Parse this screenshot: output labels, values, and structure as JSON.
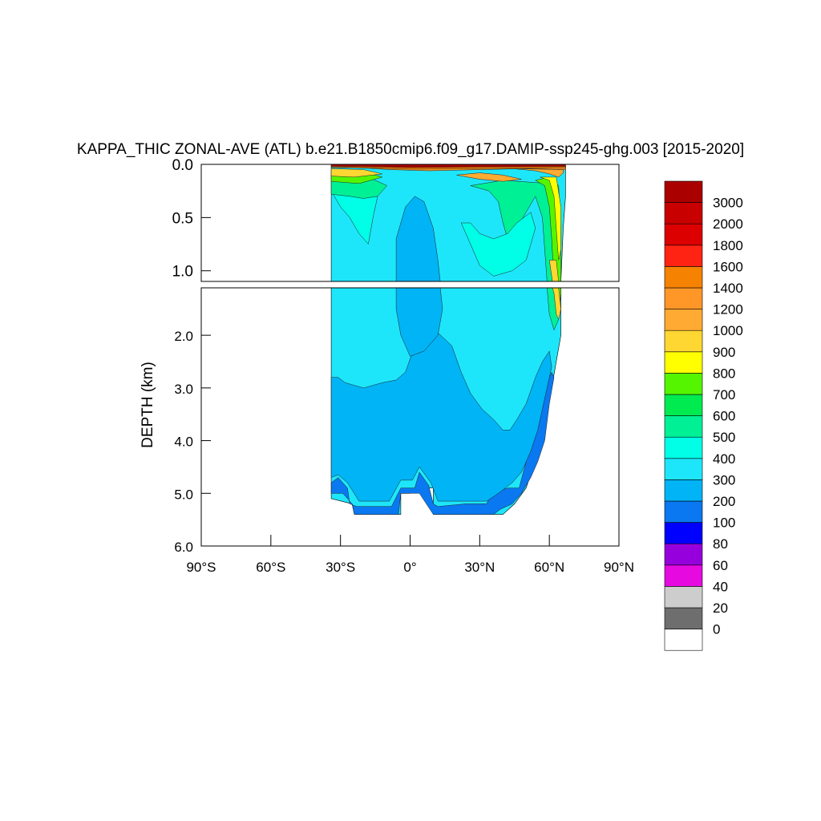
{
  "chart_data": {
    "type": "heatmap",
    "title": "KAPPA_THIC ZONAL-AVE (ATL) b.e21.B1850cmip6.f09_g17.DAMIP-ssp245-ghg.003 [2015-2020]",
    "ylabel": "DEPTH (km)",
    "xlabel": "",
    "x_ticks": [
      {
        "value": -90,
        "label": "90°S"
      },
      {
        "value": -60,
        "label": "60°S"
      },
      {
        "value": -30,
        "label": "30°S"
      },
      {
        "value": 0,
        "label": "0°"
      },
      {
        "value": 30,
        "label": "30°N"
      },
      {
        "value": 60,
        "label": "60°N"
      },
      {
        "value": 90,
        "label": "90°N"
      }
    ],
    "xlim": [
      -90,
      90
    ],
    "upper_panel": {
      "ylim": [
        0.0,
        1.1
      ],
      "y_ticks": [
        "0.0",
        "0.5",
        "1.0"
      ],
      "y_values": [
        0.0,
        0.5,
        1.0
      ]
    },
    "lower_panel": {
      "ylim": [
        1.1,
        6.0
      ],
      "y_ticks": [
        "2.0",
        "3.0",
        "4.0",
        "5.0",
        "6.0"
      ],
      "y_values": [
        2.0,
        3.0,
        4.0,
        5.0,
        6.0
      ]
    },
    "levels": [
      "0",
      "20",
      "40",
      "60",
      "80",
      "100",
      "200",
      "300",
      "400",
      "500",
      "600",
      "700",
      "800",
      "900",
      "1000",
      "1200",
      "1400",
      "1600",
      "1800",
      "2000",
      "3000"
    ],
    "colors": [
      "#ffffff",
      "#6e6e6e",
      "#cdcdcd",
      "#e60ae0",
      "#9600dc",
      "#0000ff",
      "#0a78f0",
      "#00b4f5",
      "#1ee6fa",
      "#00ffe6",
      "#00f096",
      "#00eb50",
      "#55f500",
      "#ffff00",
      "#ffd732",
      "#ffaa32",
      "#ff9628",
      "#f58200",
      "#ff2314",
      "#dc0000",
      "#c80000",
      "#aa0000"
    ],
    "regions": [
      {
        "name": "bottom-layer-200-300",
        "level_index": 6,
        "points": [
          [
            -34,
            4.8
          ],
          [
            -31,
            4.7
          ],
          [
            -27,
            4.9
          ],
          [
            -26,
            5.2
          ],
          [
            -23,
            5.25
          ],
          [
            -8,
            5.25
          ],
          [
            -4,
            4.9
          ],
          [
            2,
            4.9
          ],
          [
            4,
            4.6
          ],
          [
            8,
            4.85
          ],
          [
            10,
            5.2
          ],
          [
            12,
            5.25
          ],
          [
            24,
            5.2
          ],
          [
            33,
            5.2
          ],
          [
            35,
            5.0
          ],
          [
            42,
            4.9
          ],
          [
            47,
            4.9
          ],
          [
            50,
            4.4
          ],
          [
            53,
            3.8
          ],
          [
            56,
            3.2
          ],
          [
            59,
            2.9
          ],
          [
            61,
            2.7
          ],
          [
            62,
            2.8
          ],
          [
            60,
            3.3
          ],
          [
            58,
            4.0
          ],
          [
            55,
            4.4
          ],
          [
            52,
            4.7
          ],
          [
            48,
            5.0
          ],
          [
            44,
            5.2
          ],
          [
            39,
            5.3
          ],
          [
            36,
            5.4
          ],
          [
            30,
            5.4
          ],
          [
            22,
            5.4
          ],
          [
            12,
            5.4
          ],
          [
            10,
            5.4
          ],
          [
            4,
            5.0
          ],
          [
            0,
            5.0
          ],
          [
            -4,
            5.0
          ],
          [
            -5,
            5.4
          ],
          [
            -16,
            5.4
          ],
          [
            -24,
            5.4
          ],
          [
            -25,
            5.2
          ],
          [
            -29,
            5.0
          ],
          [
            -34,
            5.0
          ]
        ]
      },
      {
        "name": "deep-300-400",
        "level_index": 7,
        "points": [
          [
            -34,
            2.8
          ],
          [
            -31,
            2.8
          ],
          [
            -28,
            2.9
          ],
          [
            -24,
            2.95
          ],
          [
            -20,
            3.0
          ],
          [
            -12,
            2.9
          ],
          [
            -6,
            2.85
          ],
          [
            -2,
            2.7
          ],
          [
            2,
            2.2
          ],
          [
            6,
            1.9
          ],
          [
            12,
            1.95
          ],
          [
            18,
            2.2
          ],
          [
            22,
            2.7
          ],
          [
            26,
            3.1
          ],
          [
            31,
            3.4
          ],
          [
            36,
            3.6
          ],
          [
            40,
            3.8
          ],
          [
            43,
            3.8
          ],
          [
            46,
            3.6
          ],
          [
            50,
            3.3
          ],
          [
            54,
            2.8
          ],
          [
            57,
            2.5
          ],
          [
            60,
            2.3
          ],
          [
            61,
            2.6
          ],
          [
            58,
            3.2
          ],
          [
            55,
            3.8
          ],
          [
            52,
            4.2
          ],
          [
            48,
            4.6
          ],
          [
            44,
            4.8
          ],
          [
            38,
            5.0
          ],
          [
            33,
            5.15
          ],
          [
            24,
            5.15
          ],
          [
            12,
            5.15
          ],
          [
            9,
            4.8
          ],
          [
            4,
            4.5
          ],
          [
            1,
            4.75
          ],
          [
            -4,
            4.75
          ],
          [
            -9,
            5.15
          ],
          [
            -22,
            5.15
          ],
          [
            -27,
            4.8
          ],
          [
            -31,
            4.65
          ],
          [
            -34,
            4.7
          ]
        ]
      },
      {
        "name": "dome-300-400",
        "level_index": 7,
        "points": [
          [
            -6,
            1.1
          ],
          [
            -6,
            0.7
          ],
          [
            -2,
            0.4
          ],
          [
            2,
            0.3
          ],
          [
            6,
            0.35
          ],
          [
            10,
            0.6
          ],
          [
            12,
            0.9
          ],
          [
            13,
            1.1
          ],
          [
            14,
            1.5
          ],
          [
            12,
            2.0
          ],
          [
            6,
            2.3
          ],
          [
            0,
            2.4
          ],
          [
            -4,
            2.0
          ],
          [
            -6,
            1.5
          ]
        ]
      },
      {
        "name": "band-500-600",
        "level_index": 9,
        "points": [
          [
            -34,
            0.25
          ],
          [
            -30,
            0.4
          ],
          [
            -26,
            0.5
          ],
          [
            -22,
            0.65
          ],
          [
            -18,
            0.75
          ],
          [
            -16,
            0.5
          ],
          [
            -14,
            0.3
          ],
          [
            -22,
            0.3
          ],
          [
            -30,
            0.28
          ]
        ]
      },
      {
        "name": "upper-green-600-700",
        "level_index": 10,
        "points": [
          [
            -34,
            0.1
          ],
          [
            -18,
            0.12
          ],
          [
            -10,
            0.2
          ],
          [
            -14,
            0.3
          ],
          [
            -20,
            0.32
          ],
          [
            -26,
            0.3
          ],
          [
            -34,
            0.28
          ]
        ]
      },
      {
        "name": "upper-yellow-800-900",
        "level_index": 12,
        "points": [
          [
            -34,
            0.06
          ],
          [
            -20,
            0.07
          ],
          [
            -12,
            0.12
          ],
          [
            -22,
            0.18
          ],
          [
            -34,
            0.16
          ]
        ]
      },
      {
        "name": "upper-orange-1000-1200",
        "level_index": 14,
        "points": [
          [
            -34,
            0.04
          ],
          [
            -20,
            0.05
          ],
          [
            -12,
            0.09
          ],
          [
            -24,
            0.12
          ],
          [
            -34,
            0.11
          ]
        ]
      },
      {
        "name": "north-600-700",
        "level_index": 10,
        "points": [
          [
            26,
            0.2
          ],
          [
            34,
            0.25
          ],
          [
            38,
            0.35
          ],
          [
            40,
            0.55
          ],
          [
            42,
            0.7
          ],
          [
            46,
            0.6
          ],
          [
            50,
            0.45
          ],
          [
            54,
            0.3
          ],
          [
            57,
            0.5
          ],
          [
            58,
            0.8
          ],
          [
            59,
            1.1
          ],
          [
            60,
            1.6
          ],
          [
            62,
            1.9
          ],
          [
            64,
            1.7
          ],
          [
            63,
            1.3
          ],
          [
            62,
            0.9
          ],
          [
            62,
            0.4
          ],
          [
            60,
            0.18
          ],
          [
            40,
            0.15
          ]
        ]
      },
      {
        "name": "north-500-600",
        "level_index": 9,
        "points": [
          [
            22,
            0.55
          ],
          [
            26,
            0.75
          ],
          [
            30,
            0.95
          ],
          [
            36,
            1.05
          ],
          [
            44,
            1.0
          ],
          [
            50,
            0.9
          ],
          [
            54,
            0.6
          ],
          [
            52,
            0.45
          ],
          [
            46,
            0.55
          ],
          [
            42,
            0.65
          ],
          [
            36,
            0.7
          ],
          [
            30,
            0.65
          ],
          [
            26,
            0.55
          ]
        ]
      },
      {
        "name": "north-800-900",
        "level_index": 12,
        "points": [
          [
            54,
            0.15
          ],
          [
            58,
            0.2
          ],
          [
            60,
            0.4
          ],
          [
            61,
            0.7
          ],
          [
            62,
            1.1
          ],
          [
            63,
            1.5
          ],
          [
            64,
            1.6
          ],
          [
            65,
            1.2
          ],
          [
            65,
            0.6
          ],
          [
            64,
            0.2
          ],
          [
            60,
            0.12
          ]
        ]
      },
      {
        "name": "north-900-1000",
        "level_index": 13,
        "points": [
          [
            56,
            0.12
          ],
          [
            60,
            0.15
          ],
          [
            62,
            0.3
          ],
          [
            63,
            0.6
          ],
          [
            64,
            0.9
          ],
          [
            65,
            0.8
          ],
          [
            65,
            0.4
          ],
          [
            63,
            0.12
          ]
        ]
      },
      {
        "name": "north-1000-1200",
        "level_index": 14,
        "points": [
          [
            60,
            0.9
          ],
          [
            62,
            1.2
          ],
          [
            63,
            1.6
          ],
          [
            64,
            1.7
          ],
          [
            65,
            1.5
          ],
          [
            64,
            1.1
          ],
          [
            63,
            0.9
          ]
        ]
      },
      {
        "name": "north-1200-1400",
        "level_index": 15,
        "points": [
          [
            44,
            0.04
          ],
          [
            54,
            0.06
          ],
          [
            60,
            0.09
          ],
          [
            64,
            0.12
          ],
          [
            66,
            0.08
          ],
          [
            66,
            0.05
          ]
        ]
      },
      {
        "name": "gulf-orange",
        "level_index": 15,
        "points": [
          [
            20,
            0.1
          ],
          [
            30,
            0.14
          ],
          [
            40,
            0.16
          ],
          [
            48,
            0.14
          ],
          [
            40,
            0.1
          ],
          [
            30,
            0.08
          ]
        ]
      },
      {
        "name": "surface-1400-1600",
        "level_index": 16,
        "points": [
          [
            -34,
            0.03
          ],
          [
            -20,
            0.035
          ],
          [
            -8,
            0.05
          ],
          [
            8,
            0.06
          ],
          [
            30,
            0.05
          ],
          [
            50,
            0.04
          ],
          [
            67,
            0.05
          ],
          [
            67,
            0.02
          ],
          [
            -34,
            0.02
          ]
        ]
      },
      {
        "name": "surface-1600-1800",
        "level_index": 17,
        "points": [
          [
            -34,
            0.015
          ],
          [
            67,
            0.015
          ],
          [
            67,
            0.035
          ],
          [
            30,
            0.04
          ],
          [
            0,
            0.045
          ],
          [
            -34,
            0.025
          ]
        ]
      },
      {
        "name": "surface-3000",
        "level_index": 21,
        "points": [
          [
            -34,
            0.0
          ],
          [
            67,
            0.0
          ],
          [
            67,
            0.02
          ],
          [
            30,
            0.025
          ],
          [
            0,
            0.03
          ],
          [
            -20,
            0.022
          ],
          [
            -34,
            0.018
          ]
        ]
      }
    ],
    "domain_outline": [
      [
        -34,
        0.0
      ],
      [
        67,
        0.0
      ],
      [
        67,
        0.3
      ],
      [
        66,
        0.6
      ],
      [
        65,
        1.1
      ],
      [
        65,
        2.0
      ],
      [
        63,
        2.5
      ],
      [
        61,
        3.0
      ],
      [
        58,
        3.5
      ],
      [
        56,
        4.0
      ],
      [
        53,
        4.5
      ],
      [
        50,
        4.9
      ],
      [
        45,
        5.2
      ],
      [
        40,
        5.4
      ],
      [
        35,
        5.4
      ],
      [
        10,
        5.4
      ],
      [
        10,
        4.9
      ],
      [
        4,
        4.9
      ],
      [
        0,
        5.0
      ],
      [
        -4,
        5.0
      ],
      [
        -4,
        5.4
      ],
      [
        -24,
        5.4
      ],
      [
        -25,
        5.2
      ],
      [
        -34,
        5.1
      ]
    ]
  }
}
